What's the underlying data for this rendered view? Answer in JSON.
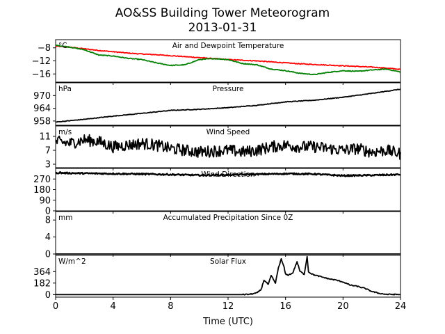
{
  "title": "AO&SS Building Tower Meteorogram",
  "subtitle": "2013-01-31",
  "chart_data": {
    "type": "line",
    "x_axis": {
      "label": "Time (UTC)",
      "range": [
        0,
        24
      ],
      "ticks": [
        "0",
        "4",
        "8",
        "12",
        "16",
        "20",
        "24"
      ]
    },
    "panels": [
      {
        "id": "temp",
        "title": "Air and Dewpoint Temperature",
        "unit": "°C",
        "ylim": [
          -18.5,
          -5.5
        ],
        "yticks": [
          "-8",
          "-12",
          "-16"
        ],
        "series": [
          {
            "color": "#ff0000",
            "x": [
              0,
              1,
              2,
              3,
              4,
              5,
              6,
              7,
              8,
              9,
              10,
              11,
              12,
              13,
              14,
              15,
              16,
              17,
              18,
              19,
              20,
              21,
              22,
              23,
              24
            ],
            "y": [
              -7.5,
              -7.8,
              -8.3,
              -8.8,
              -9.2,
              -9.6,
              -9.9,
              -10.1,
              -10.4,
              -10.7,
              -11.0,
              -11.3,
              -11.6,
              -11.8,
              -12.0,
              -12.3,
              -12.6,
              -12.9,
              -13.1,
              -13.3,
              -13.5,
              -13.7,
              -13.9,
              -14.2,
              -14.6
            ]
          },
          {
            "color": "#008000",
            "x": [
              0,
              1,
              2,
              3,
              4,
              5,
              6,
              7,
              8,
              9,
              10,
              11,
              12,
              13,
              14,
              15,
              16,
              17,
              18,
              19,
              20,
              21,
              22,
              23,
              24
            ],
            "y": [
              -7.2,
              -7.8,
              -8.6,
              -10.2,
              -10.5,
              -11.2,
              -11.6,
              -12.6,
              -13.4,
              -13.2,
              -11.6,
              -11.3,
              -11.6,
              -12.8,
              -13.2,
              -14.5,
              -15.0,
              -15.8,
              -16.2,
              -15.5,
              -15.0,
              -15.2,
              -14.8,
              -14.5,
              -15.4
            ]
          }
        ]
      },
      {
        "id": "pressure",
        "title": "Pressure",
        "unit": "hPa",
        "ylim": [
          956,
          976
        ],
        "yticks": [
          "970",
          "964",
          "958"
        ],
        "series": [
          {
            "color": "#000000",
            "x": [
              0,
              2,
              4,
              6,
              8,
              10,
              12,
              14,
              16,
              18,
              20,
              22,
              24
            ],
            "y": [
              957.5,
              958.8,
              960.3,
              961.6,
              963.0,
              963.5,
              964.3,
              965.4,
              967.0,
              967.8,
              969.2,
              971.0,
              973.0
            ]
          }
        ]
      },
      {
        "id": "wind",
        "title": "Wind Speed",
        "unit": "m/s",
        "ylim": [
          2,
          14
        ],
        "yticks": [
          "11",
          "7",
          "3"
        ],
        "series": [
          {
            "color": "#000000",
            "x": [
              0,
              1,
              2,
              3,
              4,
              5,
              6,
              7,
              8,
              9,
              10,
              11,
              12,
              13,
              14,
              15,
              16,
              17,
              18,
              19,
              20,
              21,
              22,
              23,
              24
            ],
            "y": [
              9.5,
              9.0,
              10.0,
              9.5,
              8.0,
              8.5,
              9.0,
              8.5,
              7.5,
              7.0,
              6.5,
              6.8,
              7.0,
              6.5,
              7.0,
              8.0,
              8.5,
              8.0,
              8.0,
              7.5,
              7.0,
              7.5,
              6.5,
              7.0,
              6.0
            ]
          }
        ]
      },
      {
        "id": "direction",
        "title": "Wind Direction",
        "unit": "°",
        "ylim": [
          0,
          360
        ],
        "yticks": [
          "270",
          "180",
          "90",
          "0"
        ],
        "series": [
          {
            "color": "#000000",
            "x": [
              0,
              2,
              4,
              6,
              8,
              10,
              12,
              14,
              16,
              18,
              20,
              22,
              24
            ],
            "y": [
              322,
              318,
              315,
              312,
              308,
              302,
              305,
              310,
              315,
              312,
              298,
              302,
              308
            ]
          }
        ]
      },
      {
        "id": "precip",
        "title": "Accumulated Precipitation Since 0Z",
        "unit": "mm",
        "ylim": [
          0,
          10
        ],
        "yticks": [
          "8",
          "4",
          "0"
        ],
        "series": [
          {
            "color": "#000000",
            "x": [
              0,
              24
            ],
            "y": [
              0,
              0
            ]
          }
        ]
      },
      {
        "id": "solar",
        "title": "Solar Flux",
        "unit": "W/m^2",
        "ylim": [
          -40,
          620
        ],
        "yticks": [
          "364",
          "182",
          "0"
        ],
        "series": [
          {
            "color": "#000000",
            "x": [
              0,
              13,
              13.5,
              14,
              14.3,
              14.5,
              14.8,
              15.0,
              15.3,
              15.5,
              15.7,
              15.9,
              16.0,
              16.2,
              16.5,
              16.8,
              17.0,
              17.3,
              17.5,
              17.6,
              17.8,
              18.0,
              18.5,
              19.0,
              19.5,
              20.0,
              20.5,
              21.0,
              21.5,
              22.0,
              22.5,
              23.0,
              24
            ],
            "y": [
              0,
              0,
              5,
              25,
              80,
              230,
              160,
              300,
              180,
              420,
              560,
              430,
              320,
              310,
              340,
              520,
              370,
              320,
              600,
              360,
              330,
              310,
              280,
              250,
              230,
              200,
              150,
              130,
              100,
              50,
              20,
              5,
              0
            ]
          }
        ]
      }
    ]
  }
}
